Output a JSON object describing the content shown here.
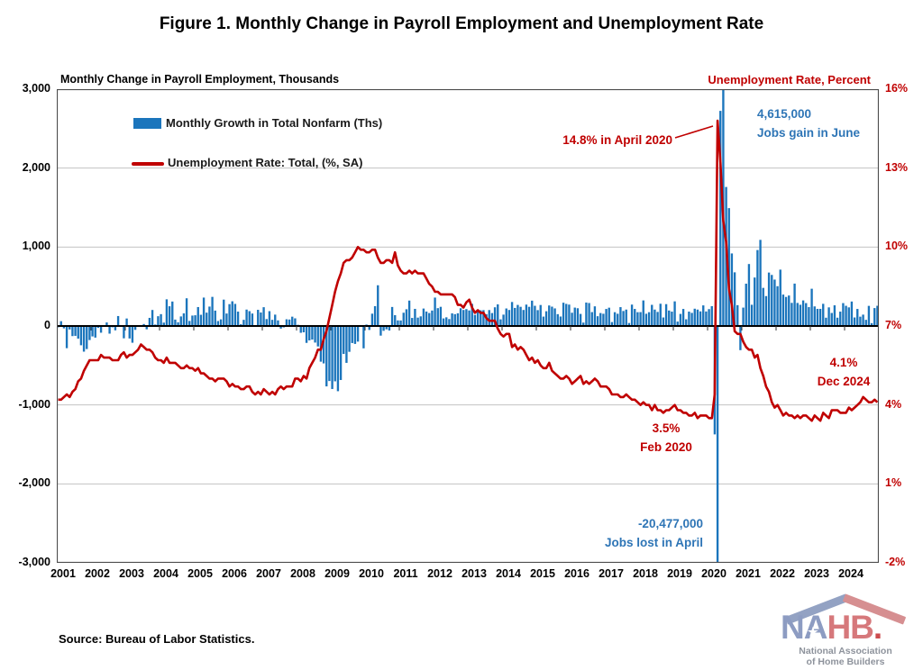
{
  "title": "Figure 1. Monthly Change in Payroll Employment and Unemployment Rate",
  "source": "Source: Bureau of Labor Statistics.",
  "logo": {
    "na": "NA",
    "hb": "HB",
    "dot": ".",
    "star": "★",
    "subtitle_line1": "National Association",
    "subtitle_line2": "of Home Builders"
  },
  "annotations": {
    "april2020_rate": "14.8% in April 2020",
    "june_jobs_line1": "4,615,000",
    "june_jobs_line2": "Jobs gain in June",
    "feb2020_line1": "3.5%",
    "feb2020_line2": "Feb 2020",
    "dec2024_line1": "4.1%",
    "dec2024_line2": "Dec 2024",
    "april_jobs_line1": "-20,477,000",
    "april_jobs_line2": "Jobs lost in April"
  },
  "colors": {
    "bar": "#1b75bc",
    "line": "#c00000",
    "annotation_red": "#c00000",
    "annotation_blue": "#2e75b6",
    "grid": "#c2c2c2",
    "spine": "#4d4d4d",
    "zero_line": "#000000"
  },
  "chart_data": {
    "type": "bar+line",
    "x_start_year": 2001,
    "grid": true,
    "legend_position": "top-left-inside",
    "year_labels": [
      "2001",
      "2002",
      "2003",
      "2004",
      "2005",
      "2006",
      "2007",
      "2008",
      "2009",
      "2010",
      "2011",
      "2012",
      "2013",
      "2014",
      "2015",
      "2016",
      "2017",
      "2018",
      "2019",
      "2020",
      "2021",
      "2022",
      "2023",
      "2024"
    ],
    "left_axis": {
      "label": "Monthly Change in Payroll Employment, Thousands",
      "lim": [
        -3000,
        3000
      ],
      "tick_step": 1000,
      "tick_labels": [
        "3,000",
        "2,000",
        "1,000",
        "0",
        "-1,000",
        "-2,000",
        "-3,000"
      ]
    },
    "right_axis": {
      "label": "Unemployment Rate, Percent",
      "lim": [
        -2,
        16
      ],
      "tick_step": 3,
      "tick_labels": [
        "16%",
        "13%",
        "10%",
        "7%",
        "4%",
        "1%",
        "-2%"
      ]
    },
    "series": [
      {
        "name": "Monthly Growth in Total Nonfarm (Ths)",
        "type": "bar",
        "axis": "left",
        "color": "#1b75bc",
        "values": [
          -16,
          61,
          -30,
          -281,
          -44,
          -128,
          -125,
          -160,
          -244,
          -325,
          -292,
          -178,
          -132,
          -147,
          -24,
          -85,
          -7,
          45,
          -97,
          -16,
          -55,
          126,
          8,
          -156,
          95,
          -158,
          -212,
          -49,
          -6,
          -2,
          25,
          -42,
          103,
          203,
          18,
          124,
          150,
          43,
          338,
          250,
          310,
          81,
          47,
          121,
          160,
          351,
          64,
          132,
          136,
          240,
          142,
          360,
          169,
          246,
          369,
          195,
          63,
          84,
          334,
          158,
          277,
          313,
          280,
          182,
          22,
          78,
          208,
          188,
          158,
          2,
          205,
          171,
          238,
          88,
          188,
          78,
          144,
          71,
          -33,
          -18,
          85,
          82,
          118,
          97,
          15,
          -86,
          -80,
          -214,
          -182,
          -172,
          -210,
          -259,
          -452,
          -474,
          -765,
          -697,
          -798,
          -701,
          -826,
          -684,
          -354,
          -467,
          -327,
          -216,
          -227,
          -198,
          -6,
          -283,
          18,
          -50,
          156,
          251,
          516,
          -122,
          -61,
          -42,
          -57,
          241,
          137,
          71,
          70,
          168,
          212,
          322,
          102,
          217,
          106,
          122,
          221,
          183,
          164,
          196,
          360,
          226,
          243,
          96,
          110,
          88,
          160,
          150,
          161,
          225,
          203,
          214,
          197,
          280,
          141,
          203,
          199,
          201,
          149,
          202,
          164,
          237,
          274,
          84,
          144,
          222,
          203,
          304,
          229,
          267,
          243,
          203,
          271,
          243,
          321,
          256,
          201,
          266,
          119,
          187,
          260,
          245,
          223,
          150,
          120,
          295,
          280,
          271,
          168,
          233,
          225,
          153,
          43,
          297,
          291,
          176,
          249,
          124,
          164,
          155,
          216,
          232,
          50,
          175,
          155,
          239,
          190,
          208,
          38,
          271,
          216,
          175,
          176,
          324,
          155,
          175,
          268,
          208,
          178,
          282,
          108,
          277,
          196,
          182,
          312,
          56,
          153,
          216,
          85,
          182,
          166,
          219,
          208,
          185,
          261,
          184,
          214,
          251,
          -1373,
          -20477,
          2725,
          4615,
          1761,
          1493,
          919,
          680,
          264,
          -306,
          233,
          536,
          785,
          269,
          614,
          962,
          1091,
          483,
          379,
          677,
          647,
          588,
          504,
          714,
          398,
          368,
          386,
          293,
          537,
          292,
          269,
          324,
          290,
          239,
          472,
          248,
          217,
          217,
          281,
          105,
          236,
          165,
          262,
          105,
          182,
          290,
          256,
          236,
          310,
          108,
          216,
          118,
          144,
          78,
          255,
          36,
          227,
          256
        ]
      },
      {
        "name": "Unemployment Rate: Total, (%, SA)",
        "type": "line",
        "axis": "right",
        "color": "#c00000",
        "values": [
          4.2,
          4.2,
          4.3,
          4.4,
          4.3,
          4.5,
          4.6,
          4.9,
          5.0,
          5.3,
          5.5,
          5.7,
          5.7,
          5.7,
          5.7,
          5.9,
          5.8,
          5.8,
          5.8,
          5.7,
          5.7,
          5.7,
          5.9,
          6.0,
          5.8,
          5.9,
          5.9,
          6.0,
          6.1,
          6.3,
          6.2,
          6.1,
          6.1,
          6.0,
          5.8,
          5.7,
          5.7,
          5.6,
          5.8,
          5.6,
          5.6,
          5.6,
          5.5,
          5.4,
          5.4,
          5.5,
          5.4,
          5.4,
          5.3,
          5.4,
          5.2,
          5.2,
          5.1,
          5.0,
          5.0,
          4.9,
          5.0,
          5.0,
          5.0,
          4.9,
          4.7,
          4.8,
          4.7,
          4.7,
          4.6,
          4.6,
          4.7,
          4.7,
          4.5,
          4.4,
          4.5,
          4.4,
          4.6,
          4.5,
          4.4,
          4.5,
          4.4,
          4.6,
          4.7,
          4.6,
          4.7,
          4.7,
          4.7,
          5.0,
          5.0,
          4.9,
          5.1,
          5.0,
          5.4,
          5.6,
          5.8,
          6.1,
          6.1,
          6.5,
          6.8,
          7.3,
          7.8,
          8.3,
          8.7,
          9.0,
          9.4,
          9.5,
          9.5,
          9.6,
          9.8,
          10.0,
          9.9,
          9.9,
          9.8,
          9.8,
          9.9,
          9.9,
          9.6,
          9.4,
          9.4,
          9.5,
          9.5,
          9.4,
          9.8,
          9.3,
          9.1,
          9.0,
          9.0,
          9.1,
          9.0,
          9.1,
          9.0,
          9.0,
          9.0,
          8.8,
          8.6,
          8.5,
          8.3,
          8.3,
          8.2,
          8.2,
          8.2,
          8.2,
          8.2,
          8.1,
          7.8,
          7.8,
          7.7,
          7.9,
          8.0,
          7.7,
          7.5,
          7.6,
          7.5,
          7.5,
          7.3,
          7.2,
          7.2,
          7.2,
          6.9,
          6.7,
          6.6,
          6.7,
          6.7,
          6.2,
          6.3,
          6.1,
          6.2,
          6.1,
          5.9,
          5.7,
          5.8,
          5.6,
          5.7,
          5.5,
          5.4,
          5.4,
          5.6,
          5.3,
          5.2,
          5.1,
          5.0,
          5.0,
          5.1,
          5.0,
          4.8,
          4.9,
          5.0,
          5.1,
          4.8,
          4.9,
          4.8,
          4.9,
          5.0,
          4.9,
          4.7,
          4.7,
          4.7,
          4.6,
          4.4,
          4.4,
          4.4,
          4.3,
          4.3,
          4.4,
          4.3,
          4.2,
          4.2,
          4.1,
          4.0,
          4.1,
          4.0,
          4.0,
          3.8,
          4.0,
          3.8,
          3.8,
          3.7,
          3.8,
          3.8,
          3.9,
          4.0,
          3.8,
          3.8,
          3.7,
          3.7,
          3.6,
          3.6,
          3.7,
          3.5,
          3.6,
          3.6,
          3.6,
          3.5,
          3.5,
          4.4,
          14.8,
          13.2,
          11.0,
          10.2,
          8.4,
          7.8,
          6.8,
          6.7,
          6.7,
          6.4,
          6.2,
          6.1,
          6.1,
          5.8,
          5.9,
          5.4,
          5.1,
          4.7,
          4.5,
          4.1,
          3.9,
          4.0,
          3.8,
          3.6,
          3.7,
          3.6,
          3.6,
          3.5,
          3.6,
          3.5,
          3.6,
          3.6,
          3.5,
          3.4,
          3.6,
          3.5,
          3.4,
          3.7,
          3.6,
          3.5,
          3.8,
          3.8,
          3.8,
          3.7,
          3.7,
          3.7,
          3.9,
          3.8,
          3.9,
          4.0,
          4.1,
          4.3,
          4.2,
          4.1,
          4.1,
          4.2,
          4.1
        ]
      }
    ]
  }
}
